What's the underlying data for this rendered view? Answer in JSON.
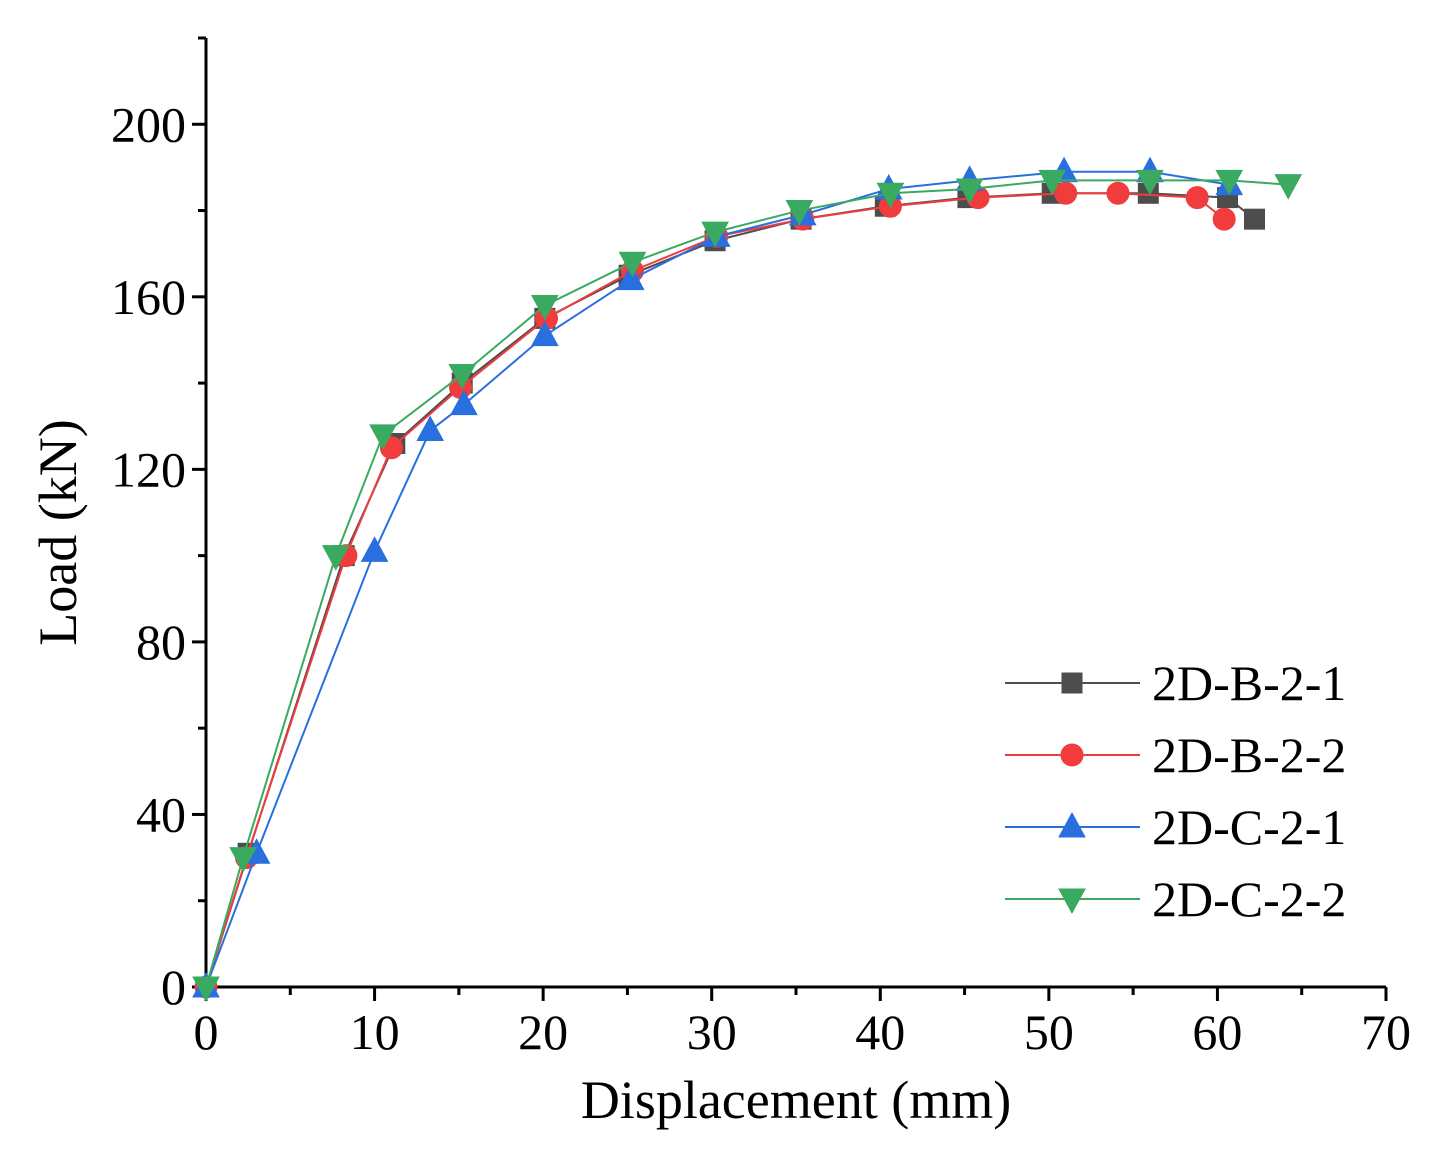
{
  "chart_data": {
    "type": "line",
    "title": "",
    "xlabel": "Displacement (mm)",
    "ylabel": "Load (kN)",
    "xlim": [
      0,
      70
    ],
    "ylim": [
      0,
      220
    ],
    "xticks": [
      0,
      10,
      20,
      30,
      40,
      50,
      60,
      70
    ],
    "yticks": [
      0,
      40,
      80,
      120,
      160,
      200
    ],
    "grid": false,
    "legend_position": "bottom-right",
    "series": [
      {
        "name": "2D-B-2-1",
        "color": "#4d4d4d",
        "marker": "square",
        "x": [
          0,
          2.5,
          8.2,
          11.2,
          15.2,
          20.1,
          25.1,
          30.2,
          35.3,
          40.3,
          45.2,
          50.2,
          55.9,
          60.6,
          62.2
        ],
        "y": [
          0,
          31,
          100,
          126,
          140,
          155,
          165,
          173,
          178,
          181,
          183,
          184,
          184,
          183,
          178
        ]
      },
      {
        "name": "2D-B-2-2",
        "color": "#f03c3c",
        "marker": "circle",
        "x": [
          0,
          2.4,
          8.3,
          11.0,
          15.1,
          20.2,
          25.3,
          30.3,
          35.4,
          40.6,
          45.8,
          51.0,
          54.1,
          58.8,
          60.4
        ],
        "y": [
          0,
          30,
          100,
          125,
          139,
          155,
          166,
          174,
          178,
          181,
          183,
          184,
          184,
          183,
          178
        ]
      },
      {
        "name": "2D-C-2-1",
        "color": "#2a6fe0",
        "marker": "triangle-up",
        "x": [
          0,
          3.0,
          10.0,
          13.3,
          15.3,
          20.1,
          25.2,
          30.3,
          35.4,
          40.5,
          45.3,
          50.9,
          56.0,
          60.7
        ],
        "y": [
          0,
          31,
          101,
          129,
          135,
          151,
          164,
          174,
          179,
          185,
          187,
          189,
          189,
          186
        ]
      },
      {
        "name": "2D-C-2-2",
        "color": "#3aaa60",
        "marker": "triangle-down",
        "x": [
          0,
          2.2,
          7.7,
          10.5,
          15.2,
          20.1,
          25.3,
          30.2,
          35.2,
          40.6,
          45.3,
          50.2,
          56.0,
          60.7,
          64.2
        ],
        "y": [
          0,
          30,
          100,
          128,
          142,
          158,
          168,
          175,
          180,
          184,
          185,
          187,
          187,
          187,
          186
        ]
      }
    ]
  }
}
